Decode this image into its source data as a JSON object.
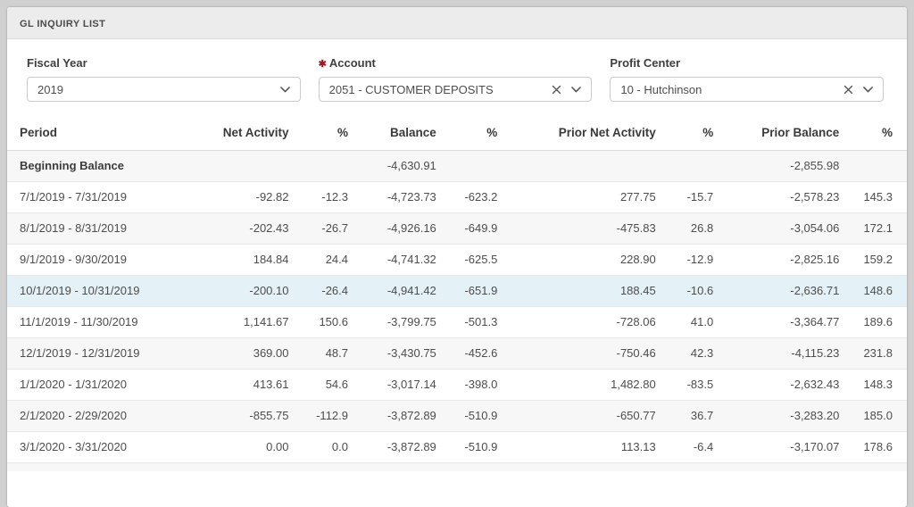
{
  "panel": {
    "title": "GL INQUIRY LIST"
  },
  "filters": {
    "fiscal_year": {
      "label": "Fiscal Year",
      "value": "2019"
    },
    "account": {
      "label": "Account",
      "required_marker": "✱",
      "value": "2051 - CUSTOMER DEPOSITS"
    },
    "profit_center": {
      "label": "Profit Center",
      "value": "10 - Hutchinson"
    }
  },
  "icons": {
    "chevron_down": "chevron-down-icon",
    "clear": "x-clear-icon"
  },
  "colors": {
    "required_marker": "#9b1b2a",
    "panel_header_bg": "#ececec",
    "row_stripe": "#f7f7f7",
    "row_highlight": "#e4f1f7",
    "page_bg": "#d0d0d0"
  },
  "table": {
    "columns": [
      "Period",
      "Net Activity",
      "%",
      "Balance",
      "%",
      "Prior Net Activity",
      "%",
      "Prior Balance",
      "%"
    ],
    "highlighted_period": "10/1/2019 - 10/31/2019",
    "rows": [
      {
        "emphasis": true,
        "highlighted": false,
        "cells": [
          "Beginning Balance",
          "",
          "",
          "-4,630.91",
          "",
          "",
          "",
          "-2,855.98",
          ""
        ]
      },
      {
        "emphasis": false,
        "highlighted": false,
        "cells": [
          "7/1/2019 - 7/31/2019",
          "-92.82",
          "-12.3",
          "-4,723.73",
          "-623.2",
          "277.75",
          "-15.7",
          "-2,578.23",
          "145.3"
        ]
      },
      {
        "emphasis": false,
        "highlighted": false,
        "cells": [
          "8/1/2019 - 8/31/2019",
          "-202.43",
          "-26.7",
          "-4,926.16",
          "-649.9",
          "-475.83",
          "26.8",
          "-3,054.06",
          "172.1"
        ]
      },
      {
        "emphasis": false,
        "highlighted": false,
        "cells": [
          "9/1/2019 - 9/30/2019",
          "184.84",
          "24.4",
          "-4,741.32",
          "-625.5",
          "228.90",
          "-12.9",
          "-2,825.16",
          "159.2"
        ]
      },
      {
        "emphasis": false,
        "highlighted": true,
        "cells": [
          "10/1/2019 - 10/31/2019",
          "-200.10",
          "-26.4",
          "-4,941.42",
          "-651.9",
          "188.45",
          "-10.6",
          "-2,636.71",
          "148.6"
        ]
      },
      {
        "emphasis": false,
        "highlighted": false,
        "cells": [
          "11/1/2019 - 11/30/2019",
          "1,141.67",
          "150.6",
          "-3,799.75",
          "-501.3",
          "-728.06",
          "41.0",
          "-3,364.77",
          "189.6"
        ]
      },
      {
        "emphasis": false,
        "highlighted": false,
        "cells": [
          "12/1/2019 - 12/31/2019",
          "369.00",
          "48.7",
          "-3,430.75",
          "-452.6",
          "-750.46",
          "42.3",
          "-4,115.23",
          "231.8"
        ]
      },
      {
        "emphasis": false,
        "highlighted": false,
        "cells": [
          "1/1/2020 - 1/31/2020",
          "413.61",
          "54.6",
          "-3,017.14",
          "-398.0",
          "1,482.80",
          "-83.5",
          "-2,632.43",
          "148.3"
        ]
      },
      {
        "emphasis": false,
        "highlighted": false,
        "cells": [
          "2/1/2020 - 2/29/2020",
          "-855.75",
          "-112.9",
          "-3,872.89",
          "-510.9",
          "-650.77",
          "36.7",
          "-3,283.20",
          "185.0"
        ]
      },
      {
        "emphasis": false,
        "highlighted": false,
        "cells": [
          "3/1/2020 - 3/31/2020",
          "0.00",
          "0.0",
          "-3,872.89",
          "-510.9",
          "113.13",
          "-6.4",
          "-3,170.07",
          "178.6"
        ]
      }
    ]
  }
}
